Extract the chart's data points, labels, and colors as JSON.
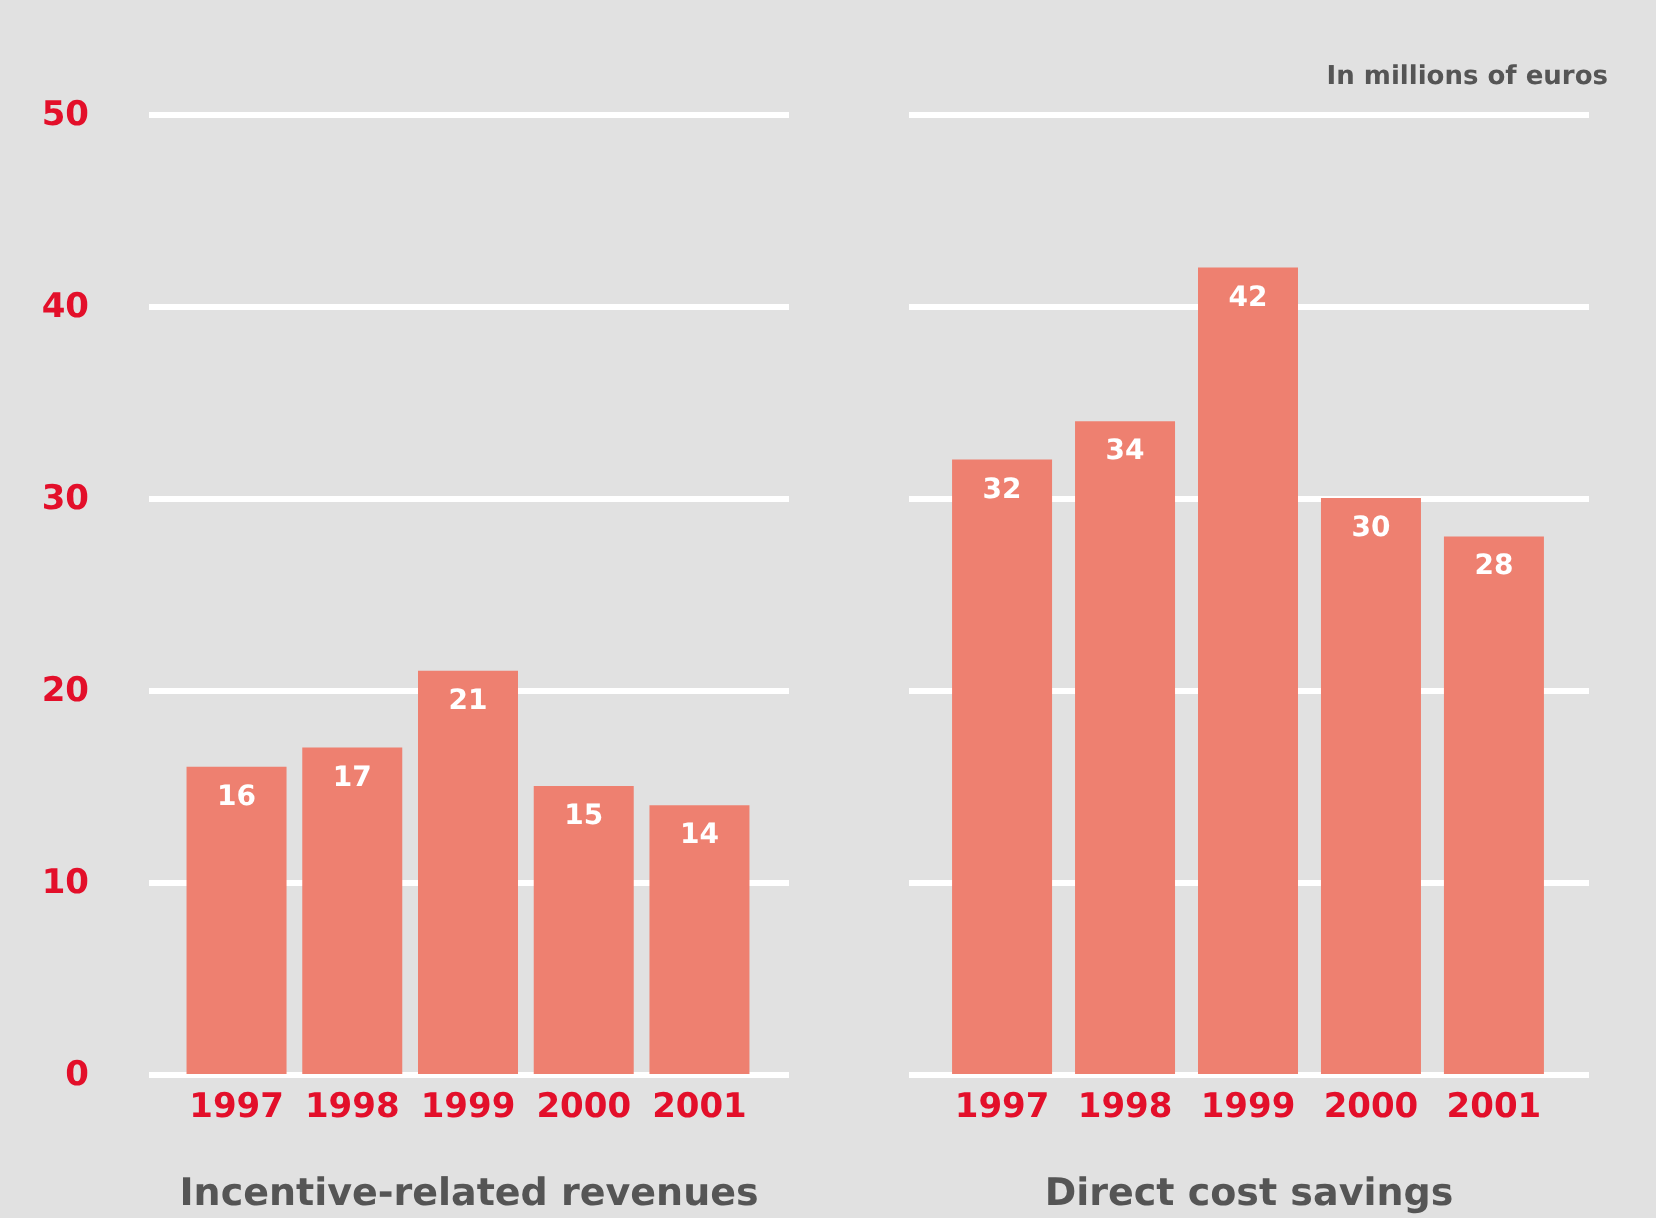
{
  "chart_data": [
    {
      "type": "bar",
      "xlabel": "Incentive-related revenues",
      "categories": [
        "1997",
        "1998",
        "1999",
        "2000",
        "2001"
      ],
      "values": [
        16,
        17,
        21,
        15,
        14
      ],
      "color": "#ee8070",
      "ylim": [
        0,
        50
      ],
      "yticks": [
        0,
        10,
        20,
        30,
        40,
        50
      ],
      "grid": "y",
      "data_labels": true
    },
    {
      "type": "bar",
      "xlabel": "Direct cost savings",
      "categories": [
        "1997",
        "1998",
        "1999",
        "2000",
        "2001"
      ],
      "values": [
        32,
        34,
        42,
        30,
        28
      ],
      "color": "#ee8070",
      "ylim": [
        0,
        50
      ],
      "yticks": [
        0,
        10,
        20,
        30,
        40,
        50
      ],
      "grid": "y",
      "data_labels": true,
      "tick_labels": "x",
      "annotations": [
        "In millions of euros"
      ]
    }
  ]
}
